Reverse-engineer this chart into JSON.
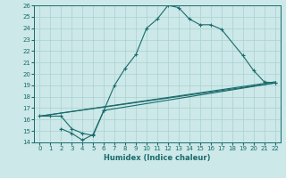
{
  "xlabel": "Humidex (Indice chaleur)",
  "ylabel": "",
  "bg_color": "#cce8e8",
  "line_color": "#1a6b6b",
  "grid_color": "#aad0d0",
  "xlim": [
    -0.5,
    22.5
  ],
  "ylim": [
    14,
    26
  ],
  "xticks": [
    0,
    1,
    2,
    3,
    4,
    5,
    6,
    7,
    8,
    9,
    10,
    11,
    12,
    13,
    14,
    15,
    16,
    17,
    18,
    19,
    20,
    21,
    22
  ],
  "yticks": [
    14,
    15,
    16,
    17,
    18,
    19,
    20,
    21,
    22,
    23,
    24,
    25,
    26
  ],
  "line1_x": [
    0,
    1,
    2,
    3,
    4,
    5,
    6,
    7,
    8,
    9,
    10,
    11,
    12,
    13,
    14,
    15,
    16,
    17,
    19,
    20,
    21,
    22
  ],
  "line1_y": [
    16.3,
    16.3,
    16.3,
    15.2,
    14.8,
    14.6,
    16.8,
    19.0,
    20.5,
    21.7,
    24.0,
    24.8,
    26.0,
    25.8,
    24.8,
    24.3,
    24.3,
    23.9,
    21.6,
    20.3,
    19.3,
    19.2
  ],
  "line2_x": [
    2,
    3,
    4,
    5,
    6,
    22
  ],
  "line2_y": [
    15.2,
    14.8,
    14.2,
    14.7,
    16.8,
    19.2
  ],
  "line3_x": [
    0,
    22
  ],
  "line3_y": [
    16.3,
    19.3
  ],
  "line4_x": [
    0,
    22
  ],
  "line4_y": [
    16.3,
    19.2
  ]
}
